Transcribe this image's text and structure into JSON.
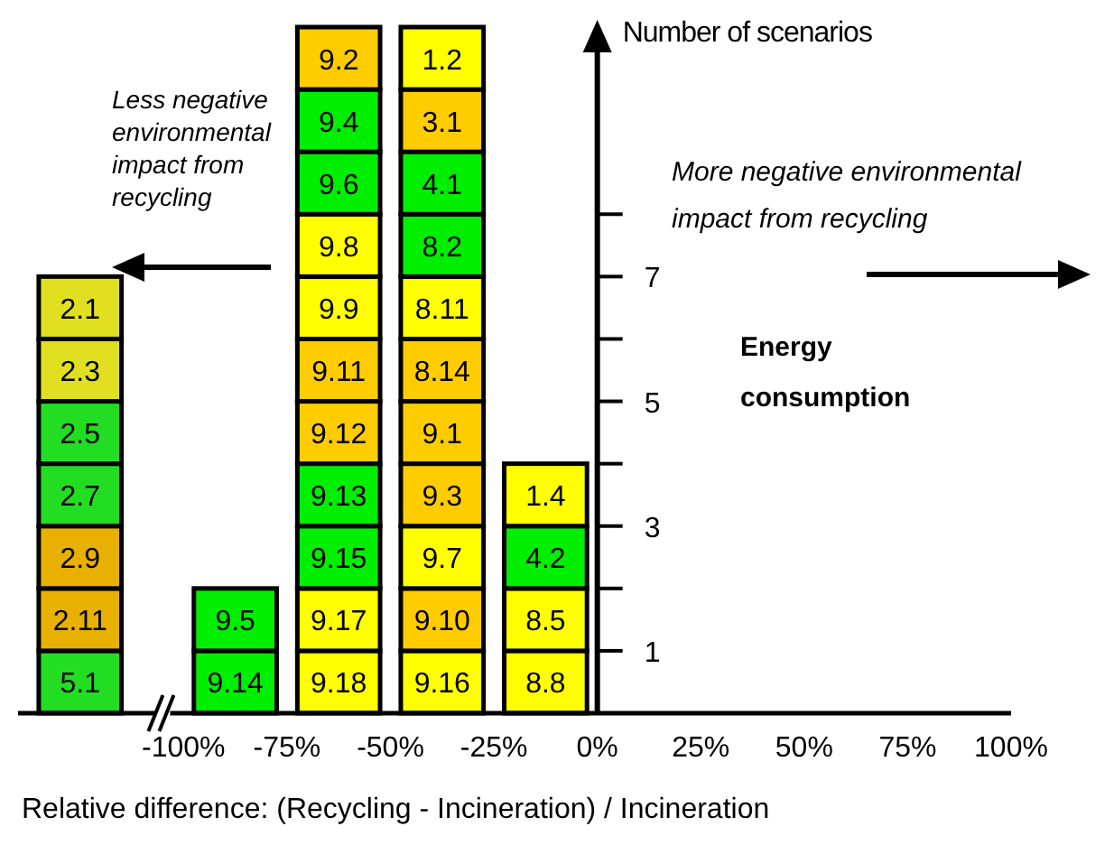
{
  "chart_data": {
    "type": "bar",
    "stacked": true,
    "xlabel": "Relative difference: (Recycling - Incineration) / Incineration",
    "ylabel": "Number of scenarios",
    "annotations": [
      "Less negative environmental impact from recycling",
      "More negative environmental impact from recycling",
      "Energy consumption"
    ],
    "x": [
      -125,
      -87.5,
      -62.5,
      -37.5,
      -12.5
    ],
    "xlim": [
      -140,
      100
    ],
    "xticks": [
      {
        "value": -100,
        "label": "-100%"
      },
      {
        "value": -75,
        "label": "-75%"
      },
      {
        "value": -50,
        "label": "-50%"
      },
      {
        "value": -25,
        "label": "-25%"
      },
      {
        "value": 0,
        "label": "0%"
      },
      {
        "value": 25,
        "label": "25%"
      },
      {
        "value": 50,
        "label": "50%"
      },
      {
        "value": 75,
        "label": "75%"
      },
      {
        "value": 100,
        "label": "100%"
      }
    ],
    "ylim": [
      0,
      11
    ],
    "yticks": [
      1,
      {
        "value": 2,
        "label": null
      },
      3,
      {
        "value": 4,
        "label": null
      },
      5,
      {
        "value": 6,
        "label": null
      },
      7,
      {
        "value": 8,
        "label": null
      }
    ],
    "series": [
      {
        "name": "5.1",
        "color": "#22dd22",
        "values": [
          1,
          null,
          null,
          null,
          null
        ]
      },
      {
        "name": "2.11",
        "color": "#e8b000",
        "values": [
          1,
          null,
          null,
          null,
          null
        ]
      },
      {
        "name": "2.9",
        "color": "#e8b000",
        "values": [
          1,
          null,
          null,
          null,
          null
        ]
      },
      {
        "name": "2.7",
        "color": "#22dd22",
        "values": [
          1,
          null,
          null,
          null,
          null
        ]
      },
      {
        "name": "2.5",
        "color": "#22dd22",
        "values": [
          1,
          null,
          null,
          null,
          null
        ]
      },
      {
        "name": "2.3",
        "color": "#e0e020",
        "values": [
          1,
          null,
          null,
          null,
          null
        ]
      },
      {
        "name": "2.1",
        "color": "#e0e020",
        "values": [
          1,
          null,
          null,
          null,
          null
        ]
      },
      {
        "name": "9.14",
        "color": "#00ee00",
        "values": [
          null,
          1,
          null,
          null,
          null
        ]
      },
      {
        "name": "9.5",
        "color": "#00ee00",
        "values": [
          null,
          1,
          null,
          null,
          null
        ]
      },
      {
        "name": "9.18",
        "color": "#ffff00",
        "values": [
          null,
          null,
          1,
          null,
          null
        ]
      },
      {
        "name": "9.17",
        "color": "#ffff00",
        "values": [
          null,
          null,
          1,
          null,
          null
        ]
      },
      {
        "name": "9.15",
        "color": "#00ee00",
        "values": [
          null,
          null,
          1,
          null,
          null
        ]
      },
      {
        "name": "9.13",
        "color": "#00ee00",
        "values": [
          null,
          null,
          1,
          null,
          null
        ]
      },
      {
        "name": "9.12",
        "color": "#ffcc00",
        "values": [
          null,
          null,
          1,
          null,
          null
        ]
      },
      {
        "name": "9.11",
        "color": "#ffcc00",
        "values": [
          null,
          null,
          1,
          null,
          null
        ]
      },
      {
        "name": "9.9",
        "color": "#ffff00",
        "values": [
          null,
          null,
          1,
          null,
          null
        ]
      },
      {
        "name": "9.8",
        "color": "#ffff00",
        "values": [
          null,
          null,
          1,
          null,
          null
        ]
      },
      {
        "name": "9.6",
        "color": "#00ee00",
        "values": [
          null,
          null,
          1,
          null,
          null
        ]
      },
      {
        "name": "9.4",
        "color": "#00ee00",
        "values": [
          null,
          null,
          1,
          null,
          null
        ]
      },
      {
        "name": "9.2",
        "color": "#ffcc00",
        "values": [
          null,
          null,
          1,
          null,
          null
        ]
      },
      {
        "name": "9.16",
        "color": "#ffff00",
        "values": [
          null,
          null,
          null,
          1,
          null
        ]
      },
      {
        "name": "9.10",
        "color": "#ffcc00",
        "values": [
          null,
          null,
          null,
          1,
          null
        ]
      },
      {
        "name": "9.7",
        "color": "#ffff00",
        "values": [
          null,
          null,
          null,
          1,
          null
        ]
      },
      {
        "name": "9.3",
        "color": "#ffcc00",
        "values": [
          null,
          null,
          null,
          1,
          null
        ]
      },
      {
        "name": "9.1",
        "color": "#ffcc00",
        "values": [
          null,
          null,
          null,
          1,
          null
        ]
      },
      {
        "name": "8.14",
        "color": "#ffcc00",
        "values": [
          null,
          null,
          null,
          1,
          null
        ]
      },
      {
        "name": "8.11",
        "color": "#ffff00",
        "values": [
          null,
          null,
          null,
          1,
          null
        ]
      },
      {
        "name": "8.2",
        "color": "#00ee00",
        "values": [
          null,
          null,
          null,
          1,
          null
        ]
      },
      {
        "name": "4.1",
        "color": "#00ee00",
        "values": [
          null,
          null,
          null,
          1,
          null
        ]
      },
      {
        "name": "3.1",
        "color": "#ffcc00",
        "values": [
          null,
          null,
          null,
          1,
          null
        ]
      },
      {
        "name": "1.2",
        "color": "#ffff00",
        "values": [
          null,
          null,
          null,
          1,
          null
        ]
      },
      {
        "name": "8.8",
        "color": "#ffff00",
        "values": [
          null,
          null,
          null,
          null,
          1
        ]
      },
      {
        "name": "8.5",
        "color": "#ffff00",
        "values": [
          null,
          null,
          null,
          null,
          1
        ]
      },
      {
        "name": "4.2",
        "color": "#00ee00",
        "values": [
          null,
          null,
          null,
          null,
          1
        ]
      },
      {
        "name": "1.4",
        "color": "#ffff00",
        "values": [
          null,
          null,
          null,
          null,
          1
        ]
      }
    ]
  }
}
